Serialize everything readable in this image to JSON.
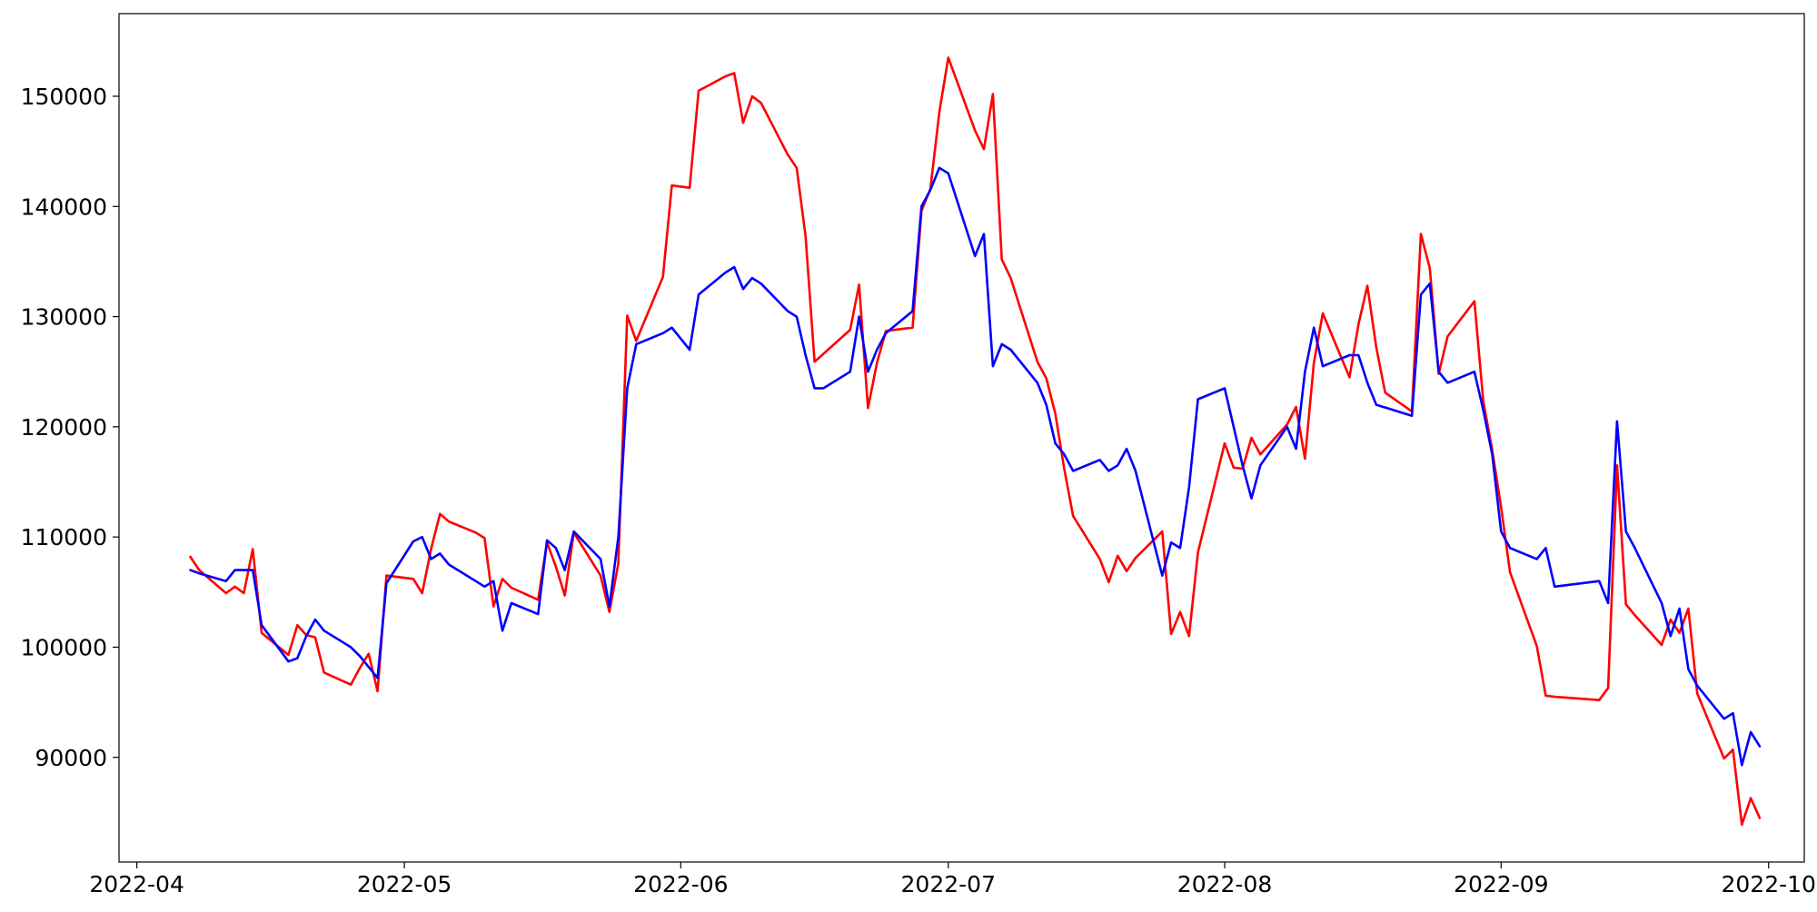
{
  "chart_data": {
    "type": "line",
    "title": "",
    "xlabel": "",
    "ylabel": "",
    "x_axis": {
      "kind": "date",
      "range": [
        "2022-03-30",
        "2022-10-05"
      ],
      "ticks": [
        "2022-04-01",
        "2022-05-01",
        "2022-06-01",
        "2022-07-01",
        "2022-08-01",
        "2022-09-01",
        "2022-10-01"
      ],
      "tick_labels": [
        "2022-04",
        "2022-05",
        "2022-06",
        "2022-07",
        "2022-08",
        "2022-09",
        "2022-10"
      ]
    },
    "y_axis": {
      "range": [
        80500,
        157500
      ],
      "ticks": [
        90000,
        100000,
        110000,
        120000,
        130000,
        140000,
        150000
      ],
      "tick_labels": [
        "90000",
        "100000",
        "110000",
        "120000",
        "130000",
        "140000",
        "150000"
      ]
    },
    "grid": false,
    "legend": "none",
    "series": [
      {
        "color": "#ff0000",
        "points": [
          [
            "2022-04-07",
            108200
          ],
          [
            "2022-04-08",
            107000
          ],
          [
            "2022-04-11",
            104900
          ],
          [
            "2022-04-12",
            105500
          ],
          [
            "2022-04-13",
            104900
          ],
          [
            "2022-04-14",
            108900
          ],
          [
            "2022-04-15",
            101300
          ],
          [
            "2022-04-18",
            99300
          ],
          [
            "2022-04-19",
            102000
          ],
          [
            "2022-04-20",
            101100
          ],
          [
            "2022-04-21",
            100900
          ],
          [
            "2022-04-22",
            97700
          ],
          [
            "2022-04-25",
            96600
          ],
          [
            "2022-04-26",
            98100
          ],
          [
            "2022-04-27",
            99400
          ],
          [
            "2022-04-28",
            96000
          ],
          [
            "2022-04-29",
            106500
          ],
          [
            "2022-05-02",
            106200
          ],
          [
            "2022-05-03",
            104900
          ],
          [
            "2022-05-04",
            108900
          ],
          [
            "2022-05-05",
            112100
          ],
          [
            "2022-05-06",
            111400
          ],
          [
            "2022-05-09",
            110400
          ],
          [
            "2022-05-10",
            109900
          ],
          [
            "2022-05-11",
            103700
          ],
          [
            "2022-05-12",
            106200
          ],
          [
            "2022-05-13",
            105400
          ],
          [
            "2022-05-16",
            104300
          ],
          [
            "2022-05-17",
            109500
          ],
          [
            "2022-05-18",
            107300
          ],
          [
            "2022-05-19",
            104700
          ],
          [
            "2022-05-20",
            110400
          ],
          [
            "2022-05-23",
            106500
          ],
          [
            "2022-05-24",
            103200
          ],
          [
            "2022-05-25",
            107600
          ],
          [
            "2022-05-26",
            130100
          ],
          [
            "2022-05-27",
            127800
          ],
          [
            "2022-05-30",
            133600
          ],
          [
            "2022-05-31",
            141900
          ],
          [
            "2022-06-02",
            141700
          ],
          [
            "2022-06-03",
            150500
          ],
          [
            "2022-06-06",
            151800
          ],
          [
            "2022-06-07",
            152100
          ],
          [
            "2022-06-08",
            147600
          ],
          [
            "2022-06-09",
            150000
          ],
          [
            "2022-06-10",
            149400
          ],
          [
            "2022-06-13",
            144700
          ],
          [
            "2022-06-14",
            143500
          ],
          [
            "2022-06-15",
            137300
          ],
          [
            "2022-06-16",
            125900
          ],
          [
            "2022-06-20",
            128800
          ],
          [
            "2022-06-21",
            132900
          ],
          [
            "2022-06-22",
            121700
          ],
          [
            "2022-06-23",
            125800
          ],
          [
            "2022-06-24",
            128700
          ],
          [
            "2022-06-27",
            129000
          ],
          [
            "2022-06-28",
            139600
          ],
          [
            "2022-06-29",
            141600
          ],
          [
            "2022-06-30",
            148600
          ],
          [
            "2022-07-01",
            153500
          ],
          [
            "2022-07-04",
            146900
          ],
          [
            "2022-07-05",
            145200
          ],
          [
            "2022-07-06",
            150200
          ],
          [
            "2022-07-07",
            135200
          ],
          [
            "2022-07-08",
            133500
          ],
          [
            "2022-07-11",
            125900
          ],
          [
            "2022-07-12",
            124400
          ],
          [
            "2022-07-13",
            121200
          ],
          [
            "2022-07-14",
            116200
          ],
          [
            "2022-07-15",
            111900
          ],
          [
            "2022-07-18",
            108000
          ],
          [
            "2022-07-19",
            105900
          ],
          [
            "2022-07-20",
            108300
          ],
          [
            "2022-07-21",
            106900
          ],
          [
            "2022-07-22",
            108100
          ],
          [
            "2022-07-25",
            110500
          ],
          [
            "2022-07-26",
            101200
          ],
          [
            "2022-07-27",
            103200
          ],
          [
            "2022-07-28",
            101000
          ],
          [
            "2022-07-29",
            108600
          ],
          [
            "2022-08-01",
            118500
          ],
          [
            "2022-08-02",
            116300
          ],
          [
            "2022-08-03",
            116200
          ],
          [
            "2022-08-04",
            119000
          ],
          [
            "2022-08-05",
            117500
          ],
          [
            "2022-08-08",
            120200
          ],
          [
            "2022-08-09",
            121800
          ],
          [
            "2022-08-10",
            117100
          ],
          [
            "2022-08-11",
            125800
          ],
          [
            "2022-08-12",
            130300
          ],
          [
            "2022-08-15",
            124500
          ],
          [
            "2022-08-16",
            129300
          ],
          [
            "2022-08-17",
            132800
          ],
          [
            "2022-08-18",
            127200
          ],
          [
            "2022-08-19",
            123100
          ],
          [
            "2022-08-22",
            121400
          ],
          [
            "2022-08-23",
            137500
          ],
          [
            "2022-08-24",
            134400
          ],
          [
            "2022-08-25",
            124800
          ],
          [
            "2022-08-26",
            128200
          ],
          [
            "2022-08-29",
            131400
          ],
          [
            "2022-08-30",
            122300
          ],
          [
            "2022-08-31",
            117900
          ],
          [
            "2022-09-01",
            112700
          ],
          [
            "2022-09-02",
            106800
          ],
          [
            "2022-09-05",
            100100
          ],
          [
            "2022-09-06",
            95600
          ],
          [
            "2022-09-07",
            95500
          ],
          [
            "2022-09-12",
            95200
          ],
          [
            "2022-09-13",
            96300
          ],
          [
            "2022-09-14",
            116500
          ],
          [
            "2022-09-15",
            103900
          ],
          [
            "2022-09-16",
            102900
          ],
          [
            "2022-09-19",
            100200
          ],
          [
            "2022-09-20",
            102500
          ],
          [
            "2022-09-21",
            101300
          ],
          [
            "2022-09-22",
            103500
          ],
          [
            "2022-09-23",
            95800
          ],
          [
            "2022-09-26",
            89900
          ],
          [
            "2022-09-27",
            90700
          ],
          [
            "2022-09-28",
            83900
          ],
          [
            "2022-09-29",
            86300
          ],
          [
            "2022-09-30",
            84500
          ]
        ]
      },
      {
        "color": "#0000ff",
        "points": [
          [
            "2022-04-07",
            107000
          ],
          [
            "2022-04-08",
            106700
          ],
          [
            "2022-04-11",
            106000
          ],
          [
            "2022-04-12",
            107000
          ],
          [
            "2022-04-13",
            107000
          ],
          [
            "2022-04-14",
            107000
          ],
          [
            "2022-04-15",
            102000
          ],
          [
            "2022-04-18",
            98700
          ],
          [
            "2022-04-19",
            99000
          ],
          [
            "2022-04-20",
            101000
          ],
          [
            "2022-04-21",
            102500
          ],
          [
            "2022-04-22",
            101500
          ],
          [
            "2022-04-25",
            100000
          ],
          [
            "2022-04-26",
            99200
          ],
          [
            "2022-04-27",
            98200
          ],
          [
            "2022-04-28",
            97200
          ],
          [
            "2022-04-29",
            105800
          ],
          [
            "2022-05-02",
            109600
          ],
          [
            "2022-05-03",
            110000
          ],
          [
            "2022-05-04",
            108000
          ],
          [
            "2022-05-05",
            108500
          ],
          [
            "2022-05-06",
            107500
          ],
          [
            "2022-05-09",
            106000
          ],
          [
            "2022-05-10",
            105500
          ],
          [
            "2022-05-11",
            106000
          ],
          [
            "2022-05-12",
            101500
          ],
          [
            "2022-05-13",
            104000
          ],
          [
            "2022-05-16",
            103000
          ],
          [
            "2022-05-17",
            109700
          ],
          [
            "2022-05-18",
            109000
          ],
          [
            "2022-05-19",
            107000
          ],
          [
            "2022-05-20",
            110500
          ],
          [
            "2022-05-23",
            108000
          ],
          [
            "2022-05-24",
            103700
          ],
          [
            "2022-05-25",
            110000
          ],
          [
            "2022-05-26",
            123500
          ],
          [
            "2022-05-27",
            127500
          ],
          [
            "2022-05-30",
            128500
          ],
          [
            "2022-05-31",
            129000
          ],
          [
            "2022-06-02",
            127000
          ],
          [
            "2022-06-03",
            132000
          ],
          [
            "2022-06-06",
            134000
          ],
          [
            "2022-06-07",
            134500
          ],
          [
            "2022-06-08",
            132500
          ],
          [
            "2022-06-09",
            133500
          ],
          [
            "2022-06-10",
            133000
          ],
          [
            "2022-06-13",
            130500
          ],
          [
            "2022-06-14",
            130000
          ],
          [
            "2022-06-15",
            126500
          ],
          [
            "2022-06-16",
            123500
          ],
          [
            "2022-06-17",
            123500
          ],
          [
            "2022-06-20",
            125000
          ],
          [
            "2022-06-21",
            130000
          ],
          [
            "2022-06-22",
            125000
          ],
          [
            "2022-06-23",
            127000
          ],
          [
            "2022-06-24",
            128500
          ],
          [
            "2022-06-27",
            130500
          ],
          [
            "2022-06-28",
            140000
          ],
          [
            "2022-06-29",
            141500
          ],
          [
            "2022-06-30",
            143500
          ],
          [
            "2022-07-01",
            143000
          ],
          [
            "2022-07-04",
            135500
          ],
          [
            "2022-07-05",
            137500
          ],
          [
            "2022-07-06",
            125500
          ],
          [
            "2022-07-07",
            127500
          ],
          [
            "2022-07-08",
            127000
          ],
          [
            "2022-07-11",
            124000
          ],
          [
            "2022-07-12",
            122000
          ],
          [
            "2022-07-13",
            118500
          ],
          [
            "2022-07-14",
            117500
          ],
          [
            "2022-07-15",
            116000
          ],
          [
            "2022-07-18",
            117000
          ],
          [
            "2022-07-19",
            116000
          ],
          [
            "2022-07-20",
            116500
          ],
          [
            "2022-07-21",
            118000
          ],
          [
            "2022-07-22",
            116000
          ],
          [
            "2022-07-25",
            106500
          ],
          [
            "2022-07-26",
            109500
          ],
          [
            "2022-07-27",
            109000
          ],
          [
            "2022-07-28",
            114500
          ],
          [
            "2022-07-29",
            122500
          ],
          [
            "2022-08-01",
            123500
          ],
          [
            "2022-08-02",
            120000
          ],
          [
            "2022-08-03",
            116500
          ],
          [
            "2022-08-04",
            113500
          ],
          [
            "2022-08-05",
            116500
          ],
          [
            "2022-08-08",
            120000
          ],
          [
            "2022-08-09",
            118000
          ],
          [
            "2022-08-10",
            125000
          ],
          [
            "2022-08-11",
            129000
          ],
          [
            "2022-08-12",
            125500
          ],
          [
            "2022-08-15",
            126500
          ],
          [
            "2022-08-16",
            126500
          ],
          [
            "2022-08-17",
            124000
          ],
          [
            "2022-08-18",
            122000
          ],
          [
            "2022-08-22",
            121000
          ],
          [
            "2022-08-23",
            132000
          ],
          [
            "2022-08-24",
            133000
          ],
          [
            "2022-08-25",
            125000
          ],
          [
            "2022-08-26",
            124000
          ],
          [
            "2022-08-29",
            125000
          ],
          [
            "2022-08-30",
            121500
          ],
          [
            "2022-08-31",
            117500
          ],
          [
            "2022-09-01",
            110500
          ],
          [
            "2022-09-02",
            109000
          ],
          [
            "2022-09-05",
            108000
          ],
          [
            "2022-09-06",
            109000
          ],
          [
            "2022-09-07",
            105500
          ],
          [
            "2022-09-12",
            106000
          ],
          [
            "2022-09-13",
            104000
          ],
          [
            "2022-09-14",
            120500
          ],
          [
            "2022-09-15",
            110500
          ],
          [
            "2022-09-16",
            109000
          ],
          [
            "2022-09-19",
            104000
          ],
          [
            "2022-09-20",
            101000
          ],
          [
            "2022-09-21",
            103500
          ],
          [
            "2022-09-22",
            98000
          ],
          [
            "2022-09-23",
            96500
          ],
          [
            "2022-09-26",
            93500
          ],
          [
            "2022-09-27",
            94000
          ],
          [
            "2022-09-28",
            89300
          ],
          [
            "2022-09-29",
            92300
          ],
          [
            "2022-09-30",
            91000
          ]
        ]
      }
    ]
  }
}
